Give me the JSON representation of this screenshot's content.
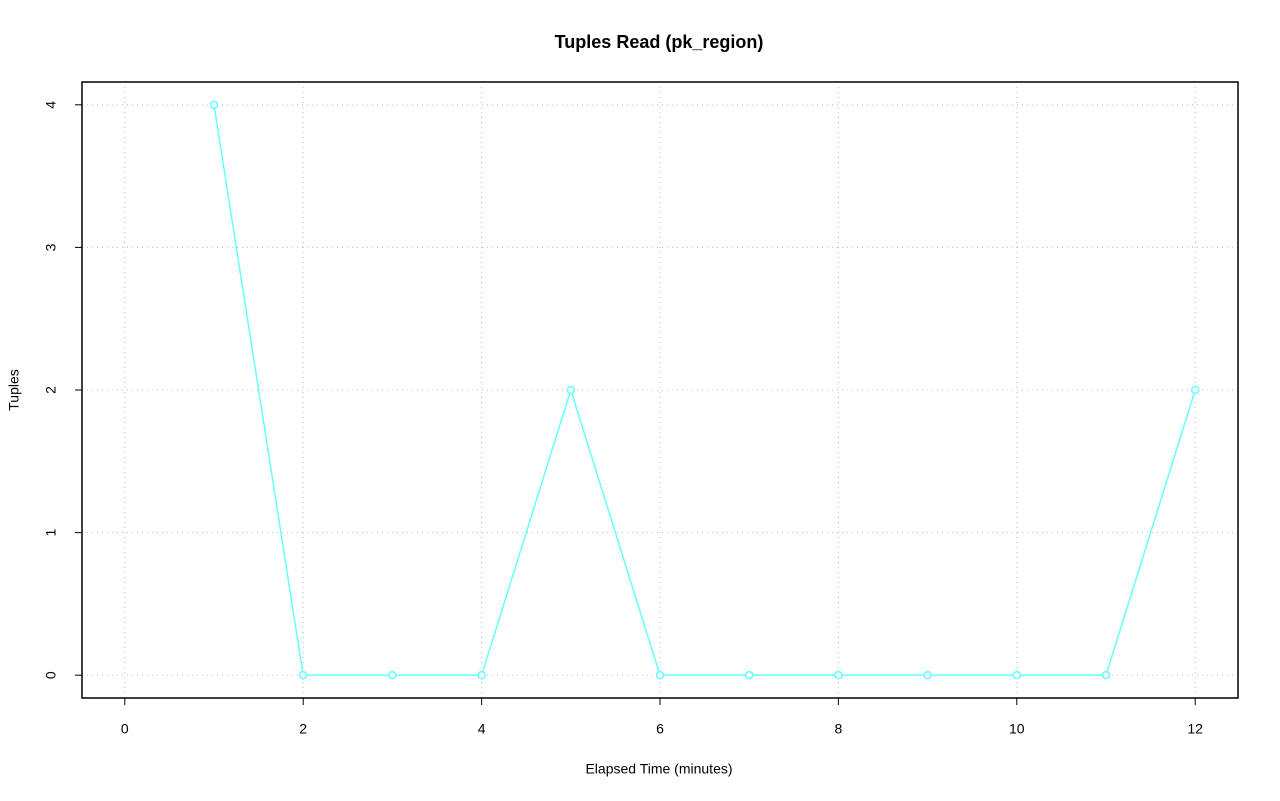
{
  "chart_data": {
    "type": "line",
    "title": "Tuples Read (pk_region)",
    "x_label": "Elapsed Time (minutes)",
    "y_label": "Tuples",
    "series": [
      {
        "color": "#66ffff",
        "x": [
          1,
          2,
          3,
          4,
          5,
          6,
          7,
          8,
          9,
          10,
          11,
          12
        ],
        "values": [
          4,
          0,
          0,
          0,
          2,
          0,
          0,
          0,
          0,
          0,
          0,
          2
        ]
      }
    ],
    "xlim": [
      -0.48,
      12.48
    ],
    "ylim": [
      -0.16,
      4.16
    ],
    "xticks": [
      0,
      2,
      4,
      6,
      8,
      10,
      12
    ],
    "yticks": [
      0,
      1,
      2,
      3,
      4
    ],
    "grid": true
  }
}
